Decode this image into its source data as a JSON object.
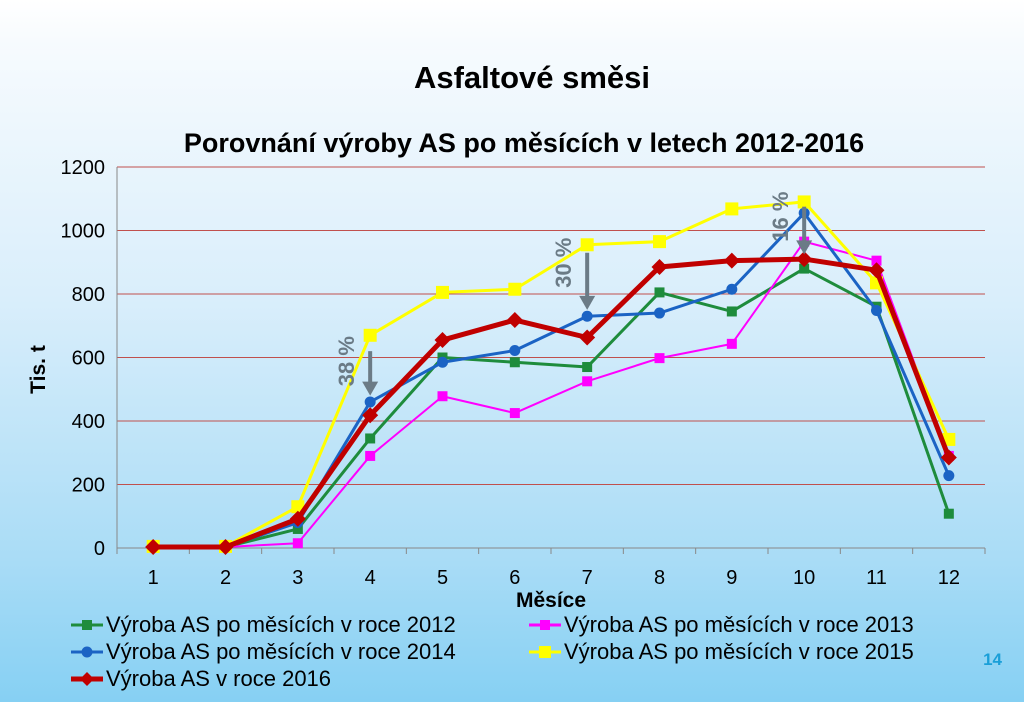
{
  "slide": {
    "title": "Asfaltové směsi",
    "page_number": "14"
  },
  "chart_data": {
    "type": "line",
    "title": "Porovnání výroby AS po měsících v letech 2012-2016",
    "xlabel": "Měsíce",
    "ylabel": "Tis. t",
    "categories": [
      "1",
      "2",
      "3",
      "4",
      "5",
      "6",
      "7",
      "8",
      "9",
      "10",
      "11",
      "12"
    ],
    "ylim": [
      0,
      1200
    ],
    "yticks": [
      "0",
      "200",
      "400",
      "600",
      "800",
      "1000",
      "1200"
    ],
    "grid": true,
    "legend_position": "bottom",
    "series": [
      {
        "name": "Výroba AS po měsících v roce 2012",
        "color": "#1e8c3c",
        "marker": "square",
        "values": [
          5,
          3,
          60,
          345,
          600,
          585,
          570,
          805,
          745,
          880,
          760,
          108
        ]
      },
      {
        "name": "Výroba AS po měsících v roce 2013",
        "color": "#ff00ff",
        "marker": "square",
        "values": [
          3,
          3,
          15,
          290,
          478,
          425,
          525,
          598,
          643,
          965,
          905,
          290
        ]
      },
      {
        "name": "Výroba AS po měsících v roce 2014",
        "color": "#1b63c4",
        "marker": "circle",
        "values": [
          5,
          3,
          80,
          460,
          585,
          622,
          730,
          740,
          815,
          1055,
          748,
          228
        ]
      },
      {
        "name": "Výroba AS po měsících v roce 2015",
        "color": "#ffff00",
        "marker": "square",
        "values": [
          5,
          5,
          130,
          670,
          805,
          815,
          955,
          965,
          1068,
          1090,
          835,
          342
        ]
      },
      {
        "name": "Výroba AS v roce 2016",
        "color": "#c00000",
        "marker": "diamond",
        "values": [
          3,
          3,
          92,
          418,
          655,
          718,
          663,
          885,
          905,
          910,
          875,
          285
        ]
      }
    ],
    "annotations": [
      {
        "text": "38 %",
        "month": 4,
        "value_from": 620,
        "value_to": 480
      },
      {
        "text": "30 %",
        "month": 7,
        "value_from": 930,
        "value_to": 750
      },
      {
        "text": "16 %",
        "month": 10,
        "value_from": 1075,
        "value_to": 925
      }
    ]
  }
}
